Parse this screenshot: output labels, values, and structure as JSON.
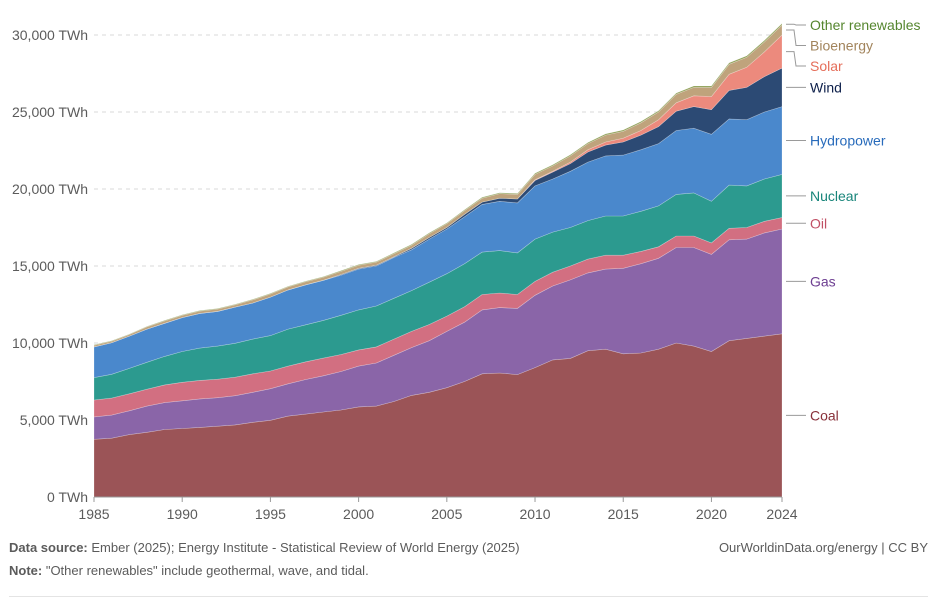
{
  "chart_data": {
    "type": "area",
    "stacked": true,
    "x_start": 1985,
    "x_end": 2024,
    "x_ticks": [
      "1985",
      "1990",
      "1995",
      "2000",
      "2005",
      "2010",
      "2015",
      "2020",
      "2024"
    ],
    "y_ticks": [
      "0 TWh",
      "5,000 TWh",
      "10,000 TWh",
      "15,000 TWh",
      "20,000 TWh",
      "25,000 TWh",
      "30,000 TWh"
    ],
    "ylim": [
      0,
      30000
    ],
    "grid": "horizontal dashed",
    "legend_placement": "right",
    "series": [
      {
        "name": "Coal",
        "color": "#9b5457",
        "label_color": "#883039",
        "values": [
          3750,
          3820,
          4050,
          4200,
          4380,
          4450,
          4520,
          4600,
          4680,
          4850,
          4980,
          5250,
          5380,
          5520,
          5650,
          5850,
          5900,
          6200,
          6600,
          6800,
          7100,
          7500,
          8000,
          8050,
          7950,
          8400,
          8900,
          9000,
          9500,
          9600,
          9300,
          9350,
          9600,
          10000,
          9800,
          9450,
          10150,
          10300,
          10450,
          10600
        ]
      },
      {
        "name": "Gas",
        "color": "#8a65a8",
        "label_color": "#6d3e91",
        "values": [
          1450,
          1500,
          1550,
          1700,
          1750,
          1800,
          1850,
          1850,
          1900,
          1950,
          2050,
          2100,
          2250,
          2350,
          2500,
          2650,
          2800,
          3000,
          3100,
          3350,
          3650,
          3850,
          4150,
          4250,
          4300,
          4700,
          4800,
          5100,
          5050,
          5200,
          5550,
          5800,
          5900,
          6200,
          6400,
          6300,
          6550,
          6450,
          6700,
          6800
        ]
      },
      {
        "name": "Oil",
        "color": "#d26f81",
        "label_color": "#c15065",
        "values": [
          1100,
          1100,
          1100,
          1100,
          1150,
          1200,
          1200,
          1200,
          1200,
          1200,
          1150,
          1150,
          1150,
          1150,
          1100,
          1050,
          1050,
          1050,
          1050,
          1050,
          1000,
          1000,
          1000,
          950,
          900,
          900,
          900,
          900,
          900,
          900,
          850,
          800,
          750,
          750,
          750,
          750,
          750,
          750,
          750,
          750
        ]
      },
      {
        "name": "Nuclear",
        "color": "#2c9a8f",
        "label_color": "#18857a",
        "values": [
          1450,
          1550,
          1650,
          1750,
          1850,
          2000,
          2100,
          2150,
          2200,
          2250,
          2300,
          2400,
          2400,
          2450,
          2550,
          2600,
          2650,
          2650,
          2650,
          2750,
          2750,
          2800,
          2750,
          2750,
          2700,
          2750,
          2600,
          2500,
          2500,
          2550,
          2550,
          2600,
          2650,
          2700,
          2800,
          2700,
          2800,
          2700,
          2750,
          2800
        ]
      },
      {
        "name": "Hydropower",
        "color": "#4a88cc",
        "label_color": "#286bbb",
        "values": [
          2000,
          2050,
          2100,
          2150,
          2150,
          2200,
          2250,
          2250,
          2350,
          2350,
          2500,
          2550,
          2600,
          2600,
          2600,
          2650,
          2600,
          2650,
          2650,
          2800,
          2900,
          3050,
          3100,
          3200,
          3250,
          3450,
          3450,
          3650,
          3800,
          3900,
          3950,
          4000,
          4050,
          4150,
          4200,
          4350,
          4300,
          4300,
          4350,
          4400
        ]
      },
      {
        "name": "Wind",
        "color": "#2c4a74",
        "label_color": "#0d1f4a",
        "values": [
          0,
          0,
          0,
          0,
          0,
          0,
          0,
          0,
          0,
          0,
          0,
          0,
          0,
          0,
          50,
          50,
          50,
          50,
          100,
          100,
          100,
          150,
          150,
          200,
          250,
          350,
          450,
          500,
          650,
          700,
          850,
          950,
          1100,
          1250,
          1400,
          1600,
          1850,
          2100,
          2300,
          2500
        ]
      },
      {
        "name": "Solar",
        "color": "#ec8a7d",
        "label_color": "#e56e5a",
        "values": [
          0,
          0,
          0,
          0,
          0,
          0,
          0,
          0,
          0,
          0,
          0,
          0,
          0,
          0,
          0,
          0,
          0,
          0,
          0,
          0,
          0,
          0,
          0,
          0,
          0,
          50,
          50,
          100,
          150,
          200,
          250,
          300,
          450,
          550,
          700,
          850,
          1050,
          1300,
          1600,
          2150
        ]
      },
      {
        "name": "Bioenergy",
        "color": "#bfa37c",
        "label_color": "#a2845c",
        "values": [
          100,
          100,
          100,
          150,
          150,
          150,
          150,
          150,
          150,
          200,
          200,
          200,
          200,
          200,
          200,
          200,
          200,
          200,
          200,
          250,
          250,
          250,
          250,
          300,
          300,
          350,
          350,
          400,
          400,
          450,
          450,
          500,
          500,
          550,
          550,
          600,
          650,
          650,
          650,
          650
        ]
      },
      {
        "name": "Other renewables",
        "color": "#8d9f54",
        "label_color": "#55862e",
        "values": [
          30,
          30,
          30,
          30,
          40,
          40,
          40,
          40,
          40,
          40,
          40,
          40,
          40,
          40,
          50,
          50,
          50,
          50,
          50,
          50,
          50,
          50,
          60,
          60,
          60,
          70,
          70,
          70,
          70,
          80,
          80,
          80,
          80,
          80,
          90,
          90,
          90,
          90,
          100,
          100
        ]
      }
    ]
  },
  "footer": {
    "source_label": "Data source:",
    "source_text": " Ember (2025); Energy Institute - Statistical Review of World Energy (2025)",
    "note_label": "Note:",
    "note_text": " \"Other renewables\" include geothermal, wave, and tidal.",
    "credit": "OurWorldinData.org/energy | CC BY"
  }
}
